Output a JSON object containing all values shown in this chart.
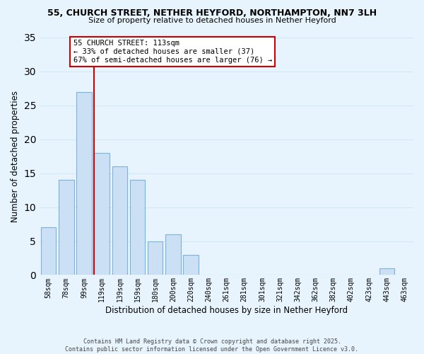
{
  "title": "55, CHURCH STREET, NETHER HEYFORD, NORTHAMPTON, NN7 3LH",
  "subtitle": "Size of property relative to detached houses in Nether Heyford",
  "xlabel": "Distribution of detached houses by size in Nether Heyford",
  "ylabel": "Number of detached properties",
  "bins": [
    "58sqm",
    "78sqm",
    "99sqm",
    "119sqm",
    "139sqm",
    "159sqm",
    "180sqm",
    "200sqm",
    "220sqm",
    "240sqm",
    "261sqm",
    "281sqm",
    "301sqm",
    "321sqm",
    "342sqm",
    "362sqm",
    "382sqm",
    "402sqm",
    "423sqm",
    "443sqm",
    "463sqm"
  ],
  "counts": [
    7,
    14,
    27,
    18,
    16,
    14,
    5,
    6,
    3,
    0,
    0,
    0,
    0,
    0,
    0,
    0,
    0,
    0,
    0,
    1,
    0
  ],
  "bar_color": "#cce0f5",
  "bar_edge_color": "#7ab3d9",
  "grid_color": "#d0e8f8",
  "reference_line_x": 2.57,
  "reference_line_color": "#cc0000",
  "annotation_text": "55 CHURCH STREET: 113sqm\n← 33% of detached houses are smaller (37)\n67% of semi-detached houses are larger (76) →",
  "annotation_box_color": "white",
  "annotation_box_edge_color": "#cc0000",
  "ylim": [
    0,
    35
  ],
  "yticks": [
    0,
    5,
    10,
    15,
    20,
    25,
    30,
    35
  ],
  "background_color": "#e8f4fd",
  "footer_line1": "Contains HM Land Registry data © Crown copyright and database right 2025.",
  "footer_line2": "Contains public sector information licensed under the Open Government Licence v3.0."
}
